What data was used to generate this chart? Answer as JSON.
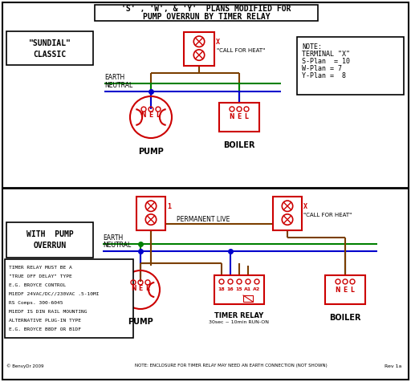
{
  "title_line1": "'S' , 'W', & 'Y'  PLANS MODIFIED FOR",
  "title_line2": "PUMP OVERRUN BY TIMER RELAY",
  "bg_color": "#ffffff",
  "red": "#cc0000",
  "green": "#008000",
  "blue": "#0000cc",
  "brown": "#7B3F00",
  "black": "#000000",
  "sundial_label1": "\"SUNDIAL\"",
  "sundial_label2": "CLASSIC",
  "call_heat": "\"CALL FOR HEAT\"",
  "perm_live": "PERMANENT LIVE",
  "with_pump1": "WITH  PUMP",
  "with_pump2": "OVERRUN",
  "pump_label": "PUMP",
  "boiler_label": "BOILER",
  "timer_label": "TIMER RELAY",
  "timer_sub": "30sec ~ 10min RUN-ON",
  "note_title": "NOTE:",
  "note_term": "TERMINAL \"X\"",
  "note_s": "S-Plan  = 10",
  "note_w": "W-Plan = 7",
  "note_y": "Y-Plan =  8",
  "timer_note_lines": [
    "TIMER RELAY MUST BE A",
    "\"TRUE OFF DELAY\" TYPE",
    "E.G. BROYCE CONTROL",
    "M1EDF 24VAC/DC//230VAC .5-10MI",
    "RS Comps. 300-6045",
    "M1EDF IS DIN RAIL MOUNTING",
    "ALTERNATIVE PLUG-IN TYPE",
    "E.G. BROYCE B8DF OR B1DF"
  ],
  "bottom_note": "NOTE: ENCLOSURE FOR TIMER RELAY MAY NEED AN EARTH CONNECTION (NOT SHOWN)",
  "copyright": "© BenvyDr 2009",
  "rev": "Rev 1a"
}
